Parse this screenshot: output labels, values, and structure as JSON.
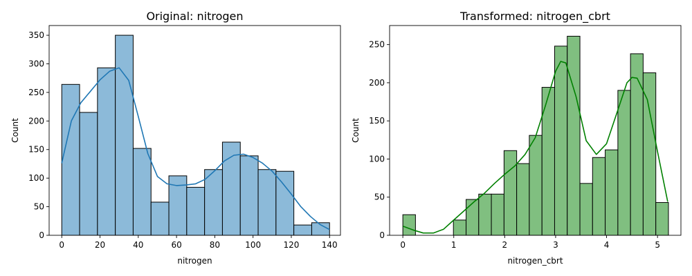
{
  "chart_data": [
    {
      "type": "bar",
      "title": "Original: nitrogen",
      "xlabel": "nitrogen",
      "ylabel": "Count",
      "color": "#1f77b4",
      "fill_color": "#8cbad9",
      "xlim": [
        -6.6,
        145.7
      ],
      "ylim": [
        0,
        367
      ],
      "xticks": [
        0,
        20,
        40,
        60,
        80,
        100,
        120,
        140
      ],
      "yticks": [
        0,
        50,
        100,
        150,
        200,
        250,
        300,
        350
      ],
      "bin_edges": [
        0,
        9.33,
        18.67,
        28,
        37.33,
        46.67,
        56,
        65.33,
        74.67,
        84,
        93.33,
        102.67,
        112,
        121.33,
        130.67,
        140
      ],
      "values": [
        264,
        215,
        293,
        350,
        152,
        58,
        104,
        84,
        115,
        163,
        139,
        115,
        112,
        18,
        22
      ],
      "kde": {
        "x": [
          0,
          5,
          10,
          15,
          20,
          25,
          30,
          35,
          40,
          45,
          50,
          55,
          60,
          65,
          70,
          75,
          80,
          85,
          90,
          95,
          100,
          105,
          110,
          115,
          120,
          125,
          130,
          135,
          140
        ],
        "y": [
          126,
          200,
          232,
          252,
          272,
          287,
          293,
          271,
          208,
          143,
          103,
          90,
          87,
          88,
          90,
          98,
          113,
          130,
          140,
          142,
          136,
          126,
          112,
          93,
          72,
          50,
          33,
          19,
          10
        ]
      }
    },
    {
      "type": "bar",
      "title": "Transformed: nitrogen_cbrt",
      "xlabel": "nitrogen_cbrt",
      "ylabel": "Count",
      "color": "#008000",
      "fill_color": "#80bf80",
      "xlim": [
        -0.26,
        5.46
      ],
      "ylim": [
        0,
        275
      ],
      "xticks": [
        0,
        1,
        2,
        3,
        4,
        5
      ],
      "yticks": [
        0,
        50,
        100,
        150,
        200,
        250
      ],
      "bin_edges": [
        0,
        0.248,
        0.497,
        0.745,
        0.993,
        1.242,
        1.49,
        1.738,
        1.987,
        2.235,
        2.483,
        2.732,
        2.98,
        3.228,
        3.477,
        3.725,
        3.973,
        4.222,
        4.47,
        4.718,
        4.967,
        5.215
      ],
      "values": [
        27,
        0,
        0,
        0,
        20,
        47,
        54,
        54,
        111,
        94,
        131,
        194,
        248,
        261,
        68,
        102,
        112,
        190,
        238,
        213,
        43
      ],
      "kde": {
        "x": [
          0,
          0.2,
          0.4,
          0.6,
          0.8,
          1.0,
          1.2,
          1.4,
          1.6,
          1.8,
          2.0,
          2.2,
          2.4,
          2.6,
          2.8,
          3.0,
          3.1,
          3.2,
          3.4,
          3.6,
          3.8,
          4.0,
          4.2,
          4.4,
          4.5,
          4.6,
          4.8,
          5.0,
          5.2
        ],
        "y": [
          12,
          7,
          3,
          3,
          8,
          20,
          32,
          44,
          55,
          68,
          80,
          91,
          106,
          128,
          170,
          215,
          228,
          226,
          182,
          124,
          106,
          120,
          160,
          200,
          207,
          206,
          178,
          110,
          44
        ]
      }
    }
  ]
}
